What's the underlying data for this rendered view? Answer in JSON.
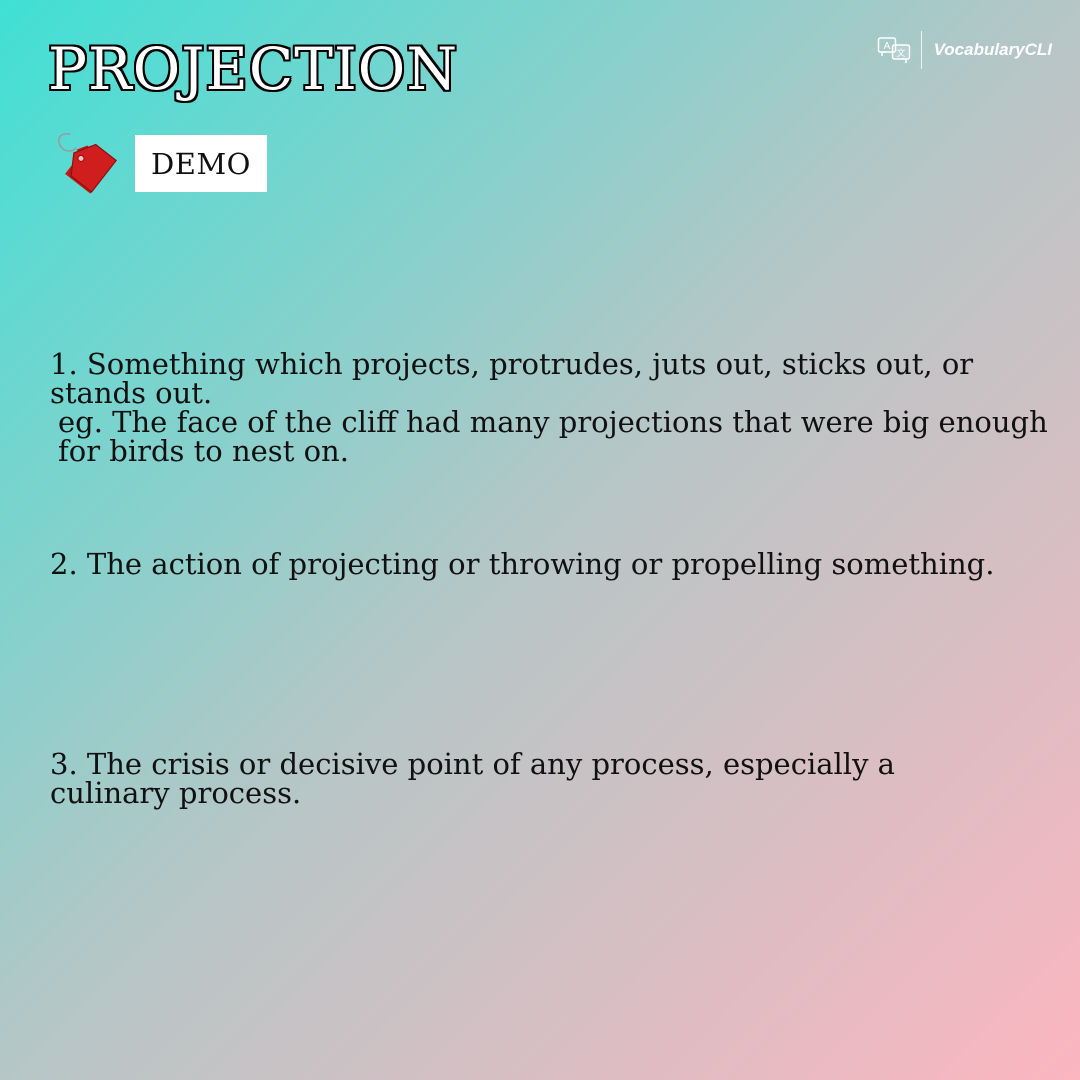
{
  "word": "PROJECTION",
  "part_of_speech": "DEMO",
  "brand": {
    "name": "VocabularyCLI",
    "icon": "translate-icon"
  },
  "tag_icon": "price-tag-icon",
  "colors": {
    "gradient_start": "#40e0d5",
    "gradient_mid": "#b6c6c6",
    "gradient_end": "#fcb6c0",
    "tag_red": "#d01e1e"
  },
  "definitions": [
    {
      "text": "1. Something which projects, protrudes, juts out, sticks out, or stands out.",
      "example": "eg. The face of the cliff had many projections that were big enough for birds to nest on."
    },
    {
      "text": "2. The action of projecting or throwing or propelling something."
    },
    {
      "text": "3. The crisis or decisive point of any process, especially a culinary process."
    }
  ]
}
